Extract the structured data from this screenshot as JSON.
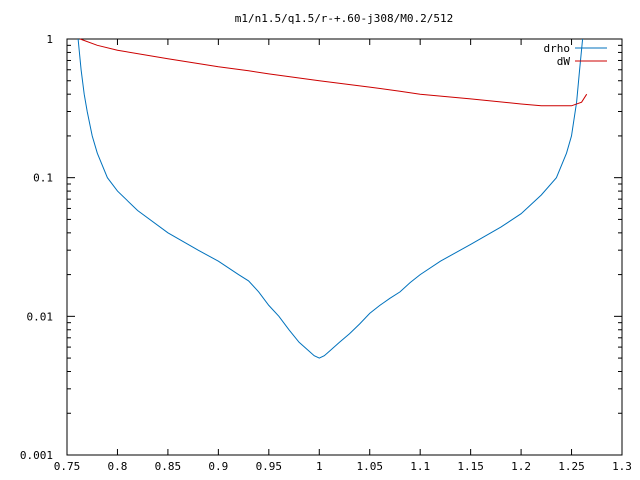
{
  "chart_data": {
    "type": "line",
    "title": "m1/n1.5/q1.5/r-+.60-j308/M0.2/512",
    "xlabel": "",
    "ylabel": "",
    "xlim": [
      0.75,
      1.3
    ],
    "ylim": [
      0.001,
      1
    ],
    "y_scale": "log",
    "x_ticks": [
      0.75,
      0.8,
      0.85,
      0.9,
      0.95,
      1,
      1.05,
      1.1,
      1.15,
      1.2,
      1.25,
      1.3
    ],
    "x_tick_labels": [
      "0.75",
      "0.8",
      "0.85",
      "0.9",
      "0.95",
      "1",
      "1.05",
      "1.1",
      "1.15",
      "1.2",
      "1.25",
      "1.3"
    ],
    "y_ticks": [
      0.001,
      0.01,
      0.1,
      1
    ],
    "y_tick_labels": [
      "0.001",
      "0.01",
      "0.1",
      "1"
    ],
    "grid": false,
    "legend_position": "top-right",
    "series": [
      {
        "name": "drho",
        "color": "#0072bd",
        "x": [
          0.761,
          0.764,
          0.767,
          0.77,
          0.775,
          0.78,
          0.79,
          0.8,
          0.82,
          0.85,
          0.88,
          0.9,
          0.92,
          0.93,
          0.94,
          0.95,
          0.96,
          0.97,
          0.98,
          0.99,
          0.995,
          1.0,
          1.005,
          1.01,
          1.02,
          1.03,
          1.04,
          1.05,
          1.06,
          1.07,
          1.08,
          1.09,
          1.1,
          1.12,
          1.15,
          1.18,
          1.2,
          1.22,
          1.235,
          1.245,
          1.25,
          1.255,
          1.258,
          1.261
        ],
        "y": [
          1.0,
          0.6,
          0.4,
          0.3,
          0.2,
          0.15,
          0.1,
          0.08,
          0.058,
          0.04,
          0.03,
          0.025,
          0.02,
          0.018,
          0.015,
          0.012,
          0.01,
          0.008,
          0.0065,
          0.0056,
          0.0052,
          0.005,
          0.0052,
          0.0056,
          0.0065,
          0.0075,
          0.0088,
          0.0105,
          0.012,
          0.0135,
          0.015,
          0.0175,
          0.02,
          0.025,
          0.033,
          0.044,
          0.055,
          0.075,
          0.1,
          0.15,
          0.2,
          0.35,
          0.6,
          1.0
        ]
      },
      {
        "name": "dW",
        "color": "#cc0000",
        "x": [
          0.763,
          0.78,
          0.8,
          0.85,
          0.9,
          0.93,
          0.95,
          1.0,
          1.05,
          1.08,
          1.1,
          1.15,
          1.2,
          1.22,
          1.24,
          1.25,
          1.26,
          1.265
        ],
        "y": [
          1.0,
          0.9,
          0.83,
          0.72,
          0.63,
          0.59,
          0.56,
          0.5,
          0.45,
          0.42,
          0.4,
          0.37,
          0.34,
          0.33,
          0.33,
          0.33,
          0.35,
          0.4
        ]
      }
    ]
  }
}
